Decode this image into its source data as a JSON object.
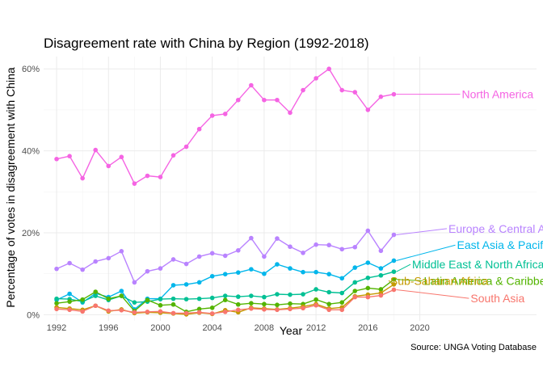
{
  "chart_data": {
    "type": "line",
    "title": "Disagreement rate with China by Region (1992-2018)",
    "xlabel": "Year",
    "ylabel": "Percentage of votes in disagreement with China",
    "caption": "Source: UNGA Voting Database",
    "xlim": [
      1991,
      2029
    ],
    "ylim": [
      -1.5,
      63
    ],
    "x_ticks": [
      1992,
      1996,
      2000,
      2004,
      2008,
      2012,
      2016,
      2020
    ],
    "x_tick_labels": [
      "1992",
      "1996",
      "2000",
      "2004",
      "2008",
      "2012",
      "2016",
      "2020"
    ],
    "y_ticks": [
      0,
      20,
      40,
      60
    ],
    "y_tick_labels": [
      "0%",
      "20%",
      "40%",
      "60%"
    ],
    "grid": true,
    "legend": "direct labels at line ends",
    "x": [
      1992,
      1993,
      1994,
      1995,
      1996,
      1997,
      1998,
      1999,
      2000,
      2001,
      2002,
      2003,
      2004,
      2005,
      2006,
      2007,
      2008,
      2009,
      2010,
      2011,
      2012,
      2013,
      2014,
      2015,
      2016,
      2017,
      2018
    ],
    "series": [
      {
        "name": "North America",
        "color": "#F564E3",
        "values": [
          38.0,
          38.7,
          33.3,
          40.2,
          36.3,
          38.5,
          32.0,
          33.9,
          33.6,
          38.9,
          41.0,
          45.3,
          48.6,
          49.0,
          52.4,
          56.0,
          52.4,
          52.4,
          49.3,
          54.8,
          57.7,
          60.0,
          54.8,
          54.3,
          50.0,
          53.2,
          53.8
        ],
        "label_x": 2026,
        "label_y": 53.8
      },
      {
        "name": "Europe & Central Asia",
        "color": "#B983FF",
        "values": [
          11.2,
          12.6,
          11.0,
          13.0,
          13.8,
          15.5,
          7.9,
          10.6,
          11.3,
          13.5,
          12.4,
          14.2,
          15.0,
          14.4,
          15.7,
          18.7,
          14.2,
          18.6,
          16.6,
          15.1,
          17.1,
          17.0,
          16.0,
          16.5,
          20.5,
          15.6,
          19.5
        ],
        "label_x": 2026.5,
        "label_y": 21.0
      },
      {
        "name": "East Asia & Pacific",
        "color": "#00B6EB",
        "values": [
          3.6,
          5.1,
          3.0,
          5.2,
          4.3,
          5.8,
          1.3,
          3.9,
          3.9,
          7.2,
          7.4,
          7.9,
          9.4,
          9.9,
          10.3,
          11.1,
          10.0,
          12.3,
          11.3,
          10.4,
          10.4,
          9.9,
          8.9,
          11.5,
          12.7,
          11.3,
          13.2
        ],
        "label_x": 2026.5,
        "label_y": 17.0
      },
      {
        "name": "Middle East & North Africa",
        "color": "#00C094",
        "values": [
          3.9,
          3.8,
          3.2,
          4.6,
          3.6,
          4.6,
          3.0,
          3.2,
          3.8,
          3.9,
          3.8,
          3.9,
          4.1,
          4.6,
          4.4,
          4.6,
          4.3,
          5.0,
          4.9,
          5.0,
          6.2,
          5.5,
          5.3,
          7.9,
          9.0,
          9.6,
          10.5
        ],
        "label_x": 2024.5,
        "label_y": 12.3
      },
      {
        "name": "Latin America & Caribbean",
        "color": "#53B400",
        "values": [
          2.8,
          3.2,
          3.7,
          5.6,
          3.9,
          4.6,
          0.9,
          3.6,
          2.3,
          2.5,
          0.7,
          1.4,
          1.7,
          3.6,
          2.5,
          2.8,
          2.6,
          2.4,
          2.7,
          2.6,
          3.7,
          2.6,
          3.0,
          5.8,
          6.5,
          6.2,
          8.6
        ],
        "label_x": 2025.5,
        "label_y": 8.3
      },
      {
        "name": "Sub-Saharan Africa",
        "color": "#C49A00",
        "values": [
          1.8,
          1.5,
          1.2,
          2.2,
          0.8,
          1.3,
          0.4,
          0.6,
          0.5,
          0.3,
          0.1,
          0.5,
          0.2,
          1.1,
          0.6,
          1.7,
          1.5,
          1.3,
          1.6,
          2.0,
          2.6,
          1.5,
          1.8,
          4.5,
          4.9,
          5.3,
          7.4
        ],
        "label_x": 2021.5,
        "label_y": 8.3
      },
      {
        "name": "South Asia",
        "color": "#F8766D",
        "values": [
          1.4,
          1.2,
          0.8,
          2.2,
          1.0,
          1.1,
          0.6,
          0.7,
          0.8,
          0.4,
          0.4,
          0.6,
          0.3,
          0.7,
          1.2,
          1.5,
          1.3,
          1.2,
          1.4,
          1.6,
          2.3,
          1.2,
          1.2,
          4.3,
          4.3,
          4.7,
          6.1
        ],
        "label_x": 2026,
        "label_y": 4.0
      }
    ]
  }
}
